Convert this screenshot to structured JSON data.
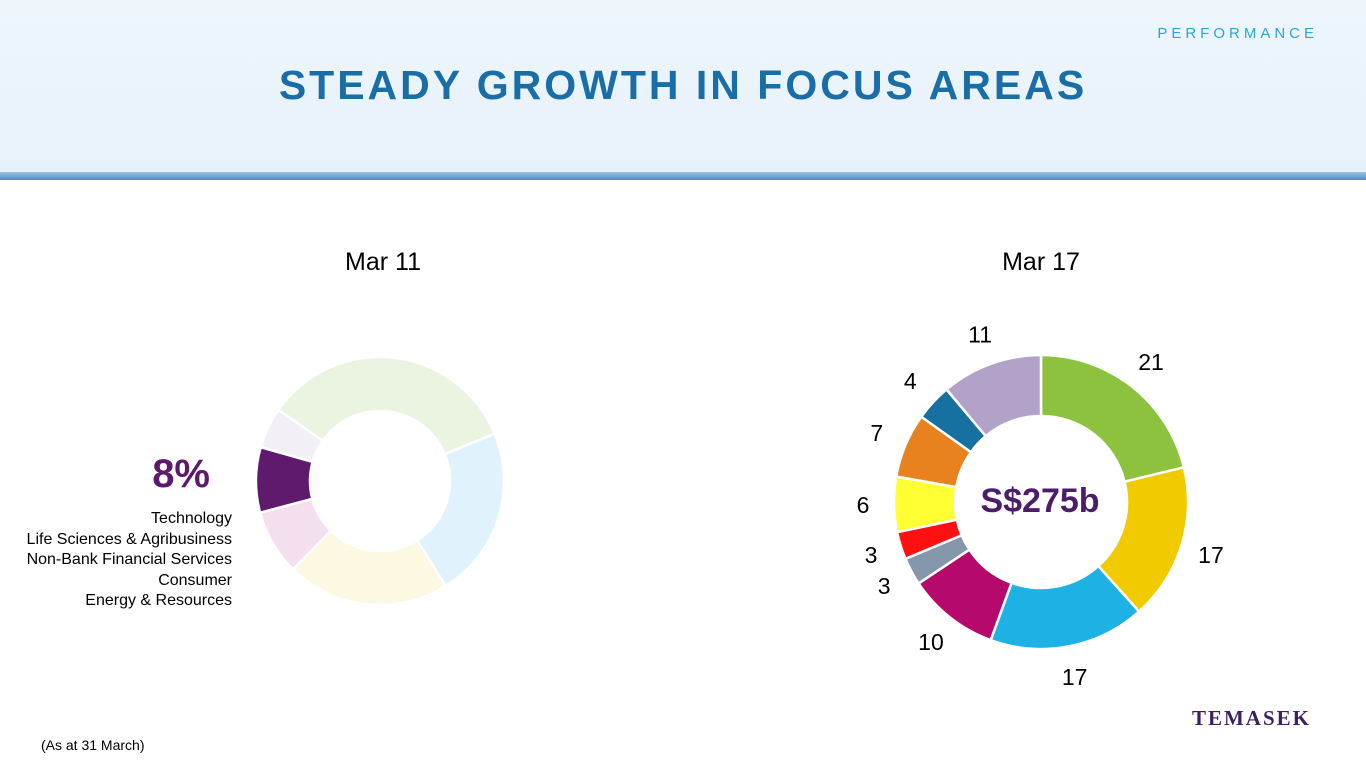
{
  "header": {
    "section": "PERFORMANCE",
    "title": "STEADY GROWTH IN FOCUS AREAS"
  },
  "chart_data": [
    {
      "type": "pie",
      "title": "Mar 11",
      "highlight": {
        "label": "8%",
        "category_index": 1
      },
      "categories": [
        "Technology",
        "Life Sciences & Agribusiness",
        "Non-Bank Financial Services",
        "Consumer",
        "Energy & Resources"
      ],
      "segments": [
        {
          "value": 32,
          "color": "#ebf3e1"
        },
        {
          "value": 21,
          "color": "#e0f2fb"
        },
        {
          "value": 20,
          "color": "#fdf8e1"
        },
        {
          "value": 8,
          "color": "#f4dfee"
        },
        {
          "value": 8,
          "color": "#5f1a6e"
        },
        {
          "value": 5,
          "color": "#f2eff7"
        }
      ]
    },
    {
      "type": "pie",
      "title": "Mar 17",
      "center_label": "S$275b",
      "segments": [
        {
          "value": 21,
          "label": "21",
          "color": "#8dc23f"
        },
        {
          "value": 17,
          "label": "17",
          "color": "#f2ca00"
        },
        {
          "value": 17,
          "label": "17",
          "color": "#1db1e4"
        },
        {
          "value": 10,
          "label": "10",
          "color": "#b5096b"
        },
        {
          "value": 3,
          "label": "3",
          "color": "#8597ab"
        },
        {
          "value": 3,
          "label": "3",
          "color": "#ff1111"
        },
        {
          "value": 6,
          "label": "6",
          "color": "#ffff33"
        },
        {
          "value": 7,
          "label": "7",
          "color": "#e8821e"
        },
        {
          "value": 4,
          "label": "4",
          "color": "#1671a0"
        },
        {
          "value": 11,
          "label": "11",
          "color": "#b3a2c7"
        }
      ]
    }
  ],
  "footnote": "(As at 31 March)",
  "logo": "TEMASEK"
}
